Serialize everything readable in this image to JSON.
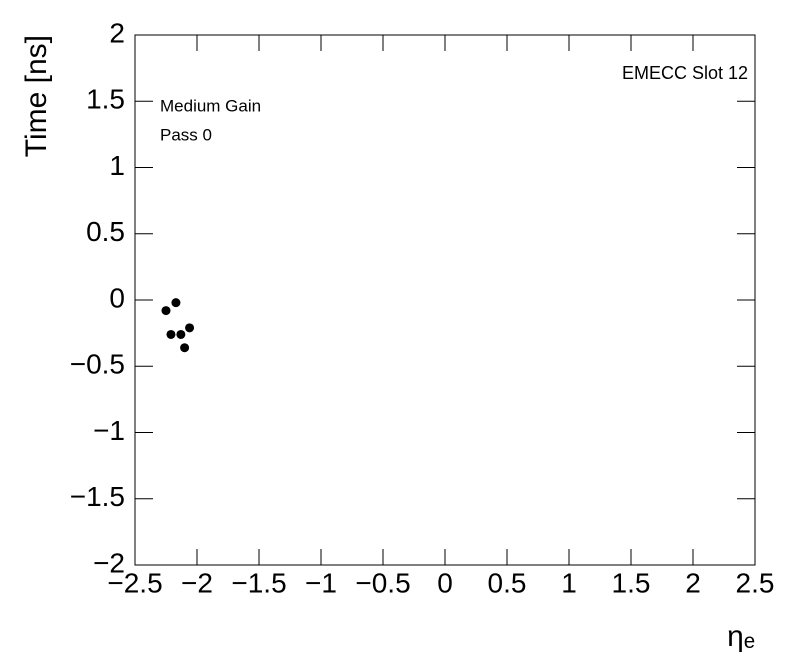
{
  "chart_data": {
    "type": "scatter",
    "y_label": "Time [ns]",
    "x_label": "ηₑ",
    "annotations": [
      "EMECC Slot 12",
      "Medium Gain",
      "Pass 0"
    ],
    "color": "#000000",
    "series": [
      {
        "x": [
          -2.25,
          -2.17,
          -2.21,
          -2.13,
          -2.06,
          -2.1
        ],
        "values": [
          -0.08,
          -0.02,
          -0.26,
          -0.26,
          -0.21,
          -0.36
        ]
      }
    ],
    "xlim": [
      -2.5,
      2.5
    ],
    "xticks": [
      {
        "value": -2.5,
        "label": "−2.5"
      },
      {
        "value": -2,
        "label": "−2"
      },
      {
        "value": -1.5,
        "label": "−1.5"
      },
      {
        "value": -1,
        "label": "−1"
      },
      {
        "value": -0.5,
        "label": "−0.5"
      },
      0,
      0.5,
      1,
      1.5,
      2,
      2.5
    ],
    "ylim": [
      -2,
      2
    ],
    "yticks": [
      {
        "value": -2,
        "label": "−2"
      },
      {
        "value": -1.5,
        "label": "−1.5"
      },
      {
        "value": -1,
        "label": "−1"
      },
      {
        "value": -0.5,
        "label": "−0.5"
      },
      0,
      0.5,
      1,
      1.5,
      2
    ]
  }
}
